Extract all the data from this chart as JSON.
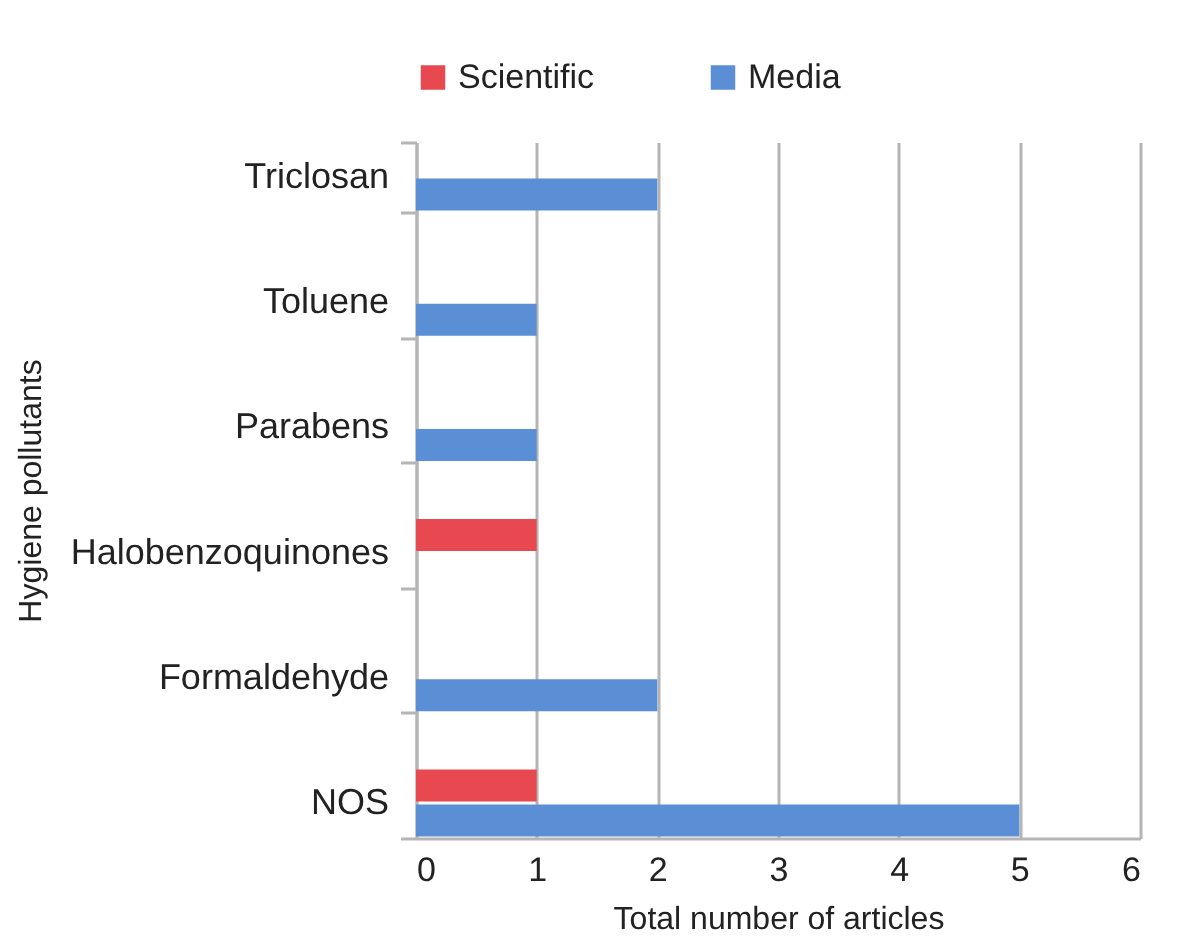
{
  "chart_data": {
    "type": "bar",
    "orientation": "horizontal",
    "xlabel": "Total number of articles",
    "ylabel": "Hygiene pollutants",
    "categories": [
      "Triclosan",
      "Toluene",
      "Parabens",
      "Halobenzoquinones",
      "Formaldehyde",
      "NOS"
    ],
    "series": [
      {
        "name": "Scientific",
        "color": "#e8484f",
        "values": [
          null,
          null,
          null,
          1,
          null,
          1
        ]
      },
      {
        "name": "Media",
        "color": "#5b8fd5",
        "values": [
          2,
          1,
          1,
          null,
          2,
          5
        ]
      }
    ],
    "xlim": [
      0,
      6
    ],
    "xticks": [
      0,
      1,
      2,
      3,
      4,
      5,
      6
    ],
    "grid": "x",
    "legend": "top"
  }
}
